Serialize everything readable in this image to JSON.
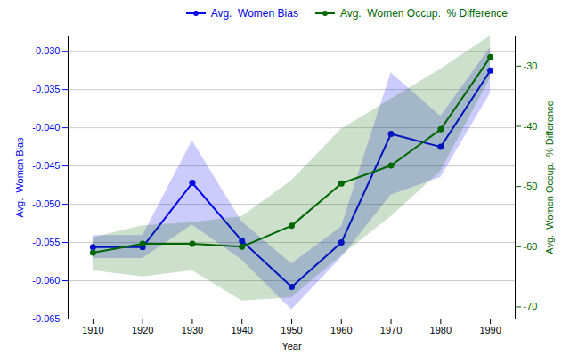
{
  "chart_data": {
    "type": "line",
    "xlabel": "Year",
    "ylabel": "Avg.  Women Bias",
    "y2label": "Avg.  Women Occup.  % Difference",
    "x": [
      1910,
      1920,
      1930,
      1940,
      1950,
      1960,
      1970,
      1980,
      1990
    ],
    "series": [
      {
        "name": "Avg.  Women Bias",
        "color": "#0000EE",
        "marker": "circle",
        "values": [
          -0.0556,
          -0.0556,
          -0.0472,
          -0.0548,
          -0.0608,
          -0.055,
          -0.0408,
          -0.0425,
          -0.0325
        ],
        "error": [
          0.0015,
          0.0015,
          0.0055,
          0.0025,
          0.003,
          0.002,
          0.008,
          0.004,
          0.003
        ]
      },
      {
        "name": "Avg.  Women Occup.  % Difference",
        "color": "#006600",
        "marker": "circle",
        "axis": "y2",
        "values": [
          -61.0,
          -59.5,
          -59.5,
          -60.0,
          -56.5,
          -49.5,
          -46.5,
          -40.5,
          -28.5
        ],
        "error_upper": [
          2.5,
          3.0,
          3.5,
          5.0,
          7.5,
          9.0,
          11.0,
          10.0,
          3.5
        ],
        "error_lower": [
          3.0,
          5.5,
          4.5,
          9.0,
          12.0,
          12.0,
          8.5,
          7.0,
          3.5
        ]
      }
    ],
    "xlim": [
      1905,
      1995
    ],
    "xticks": [
      1910,
      1920,
      1930,
      1940,
      1950,
      1960,
      1970,
      1980,
      1990
    ],
    "ylim": [
      -0.065,
      -0.028
    ],
    "yticks": [
      -0.065,
      {
        "value": -0.06,
        "label": "-0.060"
      },
      -0.055,
      {
        "value": -0.05,
        "label": "-0.050"
      },
      -0.045,
      {
        "value": -0.04,
        "label": "-0.040"
      },
      -0.035,
      {
        "value": -0.03,
        "label": "-0.030"
      }
    ],
    "y2lim": [
      -72,
      -25
    ],
    "y2ticks": [
      -70,
      -60,
      -50,
      -40,
      -30
    ],
    "grid": true,
    "legend": "upper right"
  }
}
